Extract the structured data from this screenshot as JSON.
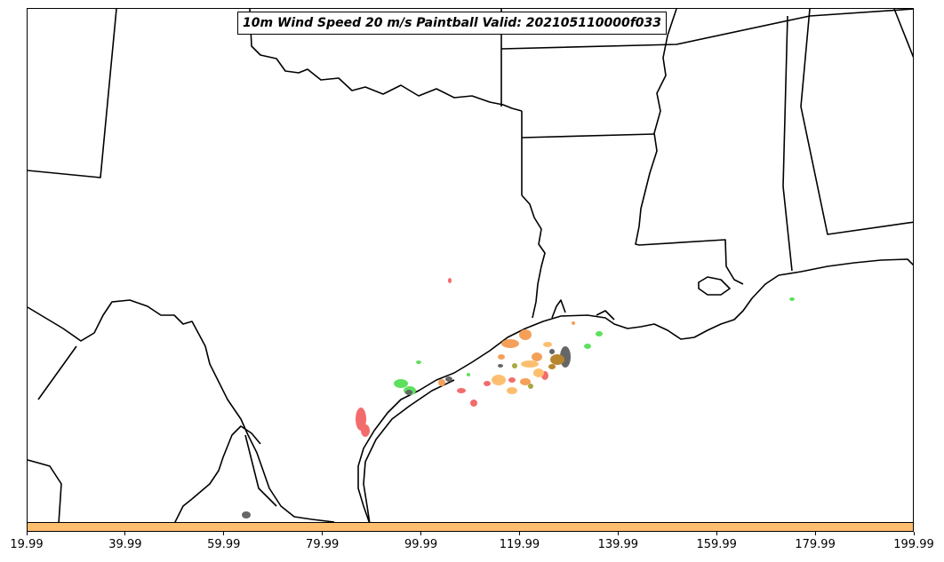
{
  "title": "10m Wind Speed 20 m/s Paintball Valid: 202105110000f033",
  "colorbar": {
    "color": "#fdbf6f",
    "ticks": [
      "19.99",
      "39.99",
      "59.99",
      "79.99",
      "99.99",
      "119.99",
      "139.99",
      "159.99",
      "179.99",
      "199.99"
    ]
  },
  "map": {
    "border_color": "#000000",
    "paintball_colors": {
      "red": "#f36c6c",
      "orange": "#f5a05a",
      "light-orange": "#fdbf6f",
      "green": "#5ee05e",
      "dark-gray": "#666666",
      "brown": "#b8862e",
      "olive": "#a8a840"
    }
  }
}
